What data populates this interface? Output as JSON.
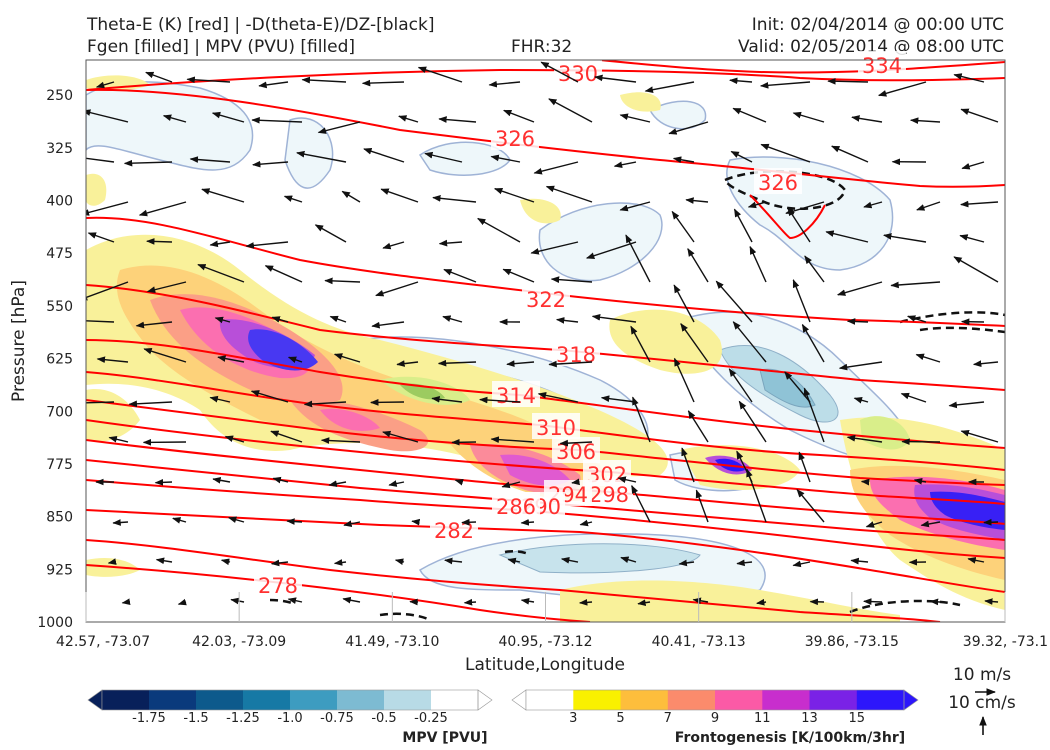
{
  "header": {
    "title_left_1": "Theta-E (K) [red] | -D(theta-E)/DZ-[black]",
    "title_left_2": "Fgen [filled] | MPV (PVU) [filled]",
    "fhr": "FHR:32",
    "init": "Init: 02/04/2014 @ 00:00 UTC",
    "valid": "Valid: 02/05/2014 @ 08:00 UTC"
  },
  "chart_data": {
    "type": "cross-section",
    "xlabel": "Latitude,Longitude",
    "ylabel": "Pressure [hPa]",
    "x_ticks": [
      "42.57, -73.07",
      "42.03, -73.09",
      "41.49, -73.10",
      "40.95, -73.12",
      "40.41, -73.13",
      "39.86, -73.15",
      "39.32, -73.1"
    ],
    "y_ticks": [
      250,
      325,
      400,
      475,
      550,
      625,
      700,
      775,
      850,
      925,
      1000
    ],
    "ylim": [
      1000,
      200
    ],
    "theta_e_contour_labels": [
      "330",
      "334",
      "326",
      "326",
      "322",
      "318",
      "314",
      "310",
      "306",
      "302",
      "298",
      "294",
      "290",
      "286",
      "282",
      "278"
    ],
    "mpv_colorbar": {
      "title": "MPV [PVU]",
      "ticks": [
        "-1.75",
        "-1.5",
        "-1.25",
        "-1.0",
        "-0.75",
        "-0.5",
        "-0.25"
      ],
      "colors": [
        "#08205a",
        "#0a3a7c",
        "#0d5a8c",
        "#1679a5",
        "#3d9cc0",
        "#7dbbd2",
        "#b8dbe6",
        "#ffffff"
      ]
    },
    "fgen_colorbar": {
      "title": "Frontogenesis [K/100km/3hr]",
      "ticks": [
        "3",
        "5",
        "7",
        "9",
        "11",
        "13",
        "15"
      ],
      "colors": [
        "#ffffff",
        "#f9f100",
        "#fdbe3c",
        "#fb8b6c",
        "#fb5aa6",
        "#c82ecd",
        "#7a22e6",
        "#2d16fb"
      ]
    },
    "vector_key": {
      "horizontal": "10 m/s",
      "vertical": "10 cm/s"
    }
  }
}
